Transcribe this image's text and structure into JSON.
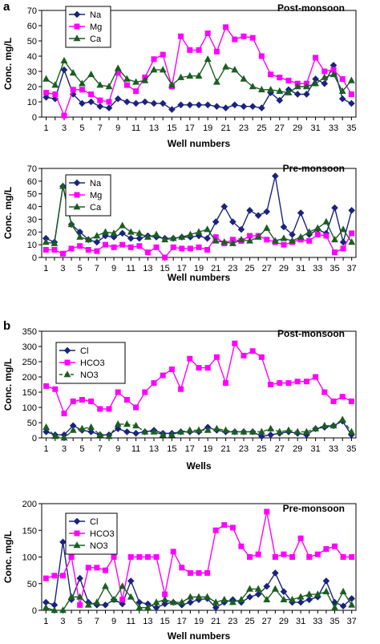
{
  "panel_labels": [
    "a",
    "b"
  ],
  "chart_data": [
    {
      "type": "line",
      "title": "Post-monsoon",
      "xlabel": "Well numbers",
      "ylabel": "Conc. mg/L",
      "ylim": [
        0,
        70
      ],
      "yticks": [
        0,
        10,
        20,
        30,
        40,
        50,
        60,
        70
      ],
      "x": [
        1,
        2,
        3,
        4,
        5,
        6,
        7,
        8,
        9,
        10,
        11,
        12,
        13,
        14,
        15,
        16,
        17,
        18,
        19,
        20,
        21,
        22,
        23,
        24,
        25,
        26,
        27,
        28,
        29,
        30,
        31,
        32,
        33,
        34,
        35
      ],
      "xtick_labels": [
        "1",
        "3",
        "5",
        "7",
        "9",
        "11",
        "13",
        "15",
        "17",
        "19",
        "21",
        "23",
        "25",
        "27",
        "29",
        "31",
        "33",
        "35"
      ],
      "xtick_values": [
        1,
        3,
        5,
        7,
        9,
        11,
        13,
        15,
        17,
        19,
        21,
        23,
        25,
        27,
        29,
        31,
        33,
        35
      ],
      "legend_position": "top-left",
      "series": [
        {
          "name": "Na",
          "color": "#1a237e",
          "marker": "diamond",
          "values": [
            13,
            12,
            31,
            15,
            9,
            10,
            7,
            6,
            12,
            10,
            9,
            10,
            9,
            9,
            5,
            8,
            8,
            8,
            8,
            7,
            6,
            8,
            7,
            7,
            6,
            16,
            11,
            18,
            15,
            15,
            25,
            22,
            34,
            12,
            9
          ]
        },
        {
          "name": "Mg",
          "color": "#ff00ff",
          "marker": "square",
          "values": [
            16,
            15,
            1,
            18,
            18,
            15,
            11,
            10,
            29,
            21,
            17,
            26,
            38,
            41,
            20,
            53,
            44,
            44,
            55,
            43,
            59,
            51,
            53,
            52,
            40,
            28,
            26,
            24,
            22,
            22,
            39,
            30,
            31,
            25,
            15
          ]
        },
        {
          "name": "Ca",
          "color": "#1b5e20",
          "marker": "triangle",
          "values": [
            25,
            21,
            37,
            29,
            22,
            28,
            21,
            20,
            32,
            25,
            23,
            24,
            31,
            31,
            21,
            26,
            27,
            27,
            38,
            23,
            33,
            31,
            25,
            20,
            18,
            18,
            17,
            16,
            20,
            20,
            22,
            26,
            28,
            17,
            24
          ]
        }
      ]
    },
    {
      "type": "line",
      "title": "Pre-monsoon",
      "xlabel": "Well numbers",
      "ylabel": "Conc. mg/L",
      "ylim": [
        0,
        70
      ],
      "yticks": [
        0,
        10,
        20,
        30,
        40,
        50,
        60,
        70
      ],
      "x": [
        1,
        2,
        3,
        4,
        5,
        6,
        7,
        8,
        9,
        10,
        11,
        12,
        13,
        14,
        15,
        16,
        17,
        18,
        19,
        20,
        21,
        22,
        23,
        24,
        25,
        26,
        27,
        28,
        29,
        30,
        31,
        32,
        33,
        34,
        35,
        36,
        37
      ],
      "xtick_labels": [
        "1",
        "3",
        "5",
        "7",
        "9",
        "11",
        "13",
        "15",
        "17",
        "19",
        "21",
        "23",
        "25",
        "27",
        "29",
        "31",
        "33",
        "35",
        "37"
      ],
      "xtick_values": [
        1,
        3,
        5,
        7,
        9,
        11,
        13,
        15,
        17,
        19,
        21,
        23,
        25,
        27,
        29,
        31,
        33,
        35,
        37
      ],
      "legend_position": "top-left",
      "series": [
        {
          "name": "Na",
          "color": "#1a237e",
          "marker": "diamond",
          "values": [
            15,
            12,
            56,
            26,
            20,
            14,
            12,
            17,
            16,
            19,
            15,
            15,
            17,
            16,
            15,
            15,
            16,
            16,
            17,
            15,
            28,
            40,
            28,
            22,
            37,
            33,
            36,
            64,
            24,
            18,
            35,
            18,
            22,
            19,
            39,
            12,
            37
          ]
        },
        {
          "name": "Mg",
          "color": "#ff00ff",
          "marker": "square",
          "values": [
            6,
            6,
            3,
            7,
            9,
            6,
            5,
            10,
            8,
            10,
            8,
            9,
            4,
            8,
            0,
            8,
            7,
            7,
            8,
            6,
            16,
            11,
            14,
            13,
            17,
            17,
            14,
            12,
            10,
            12,
            14,
            13,
            18,
            17,
            4,
            7,
            19
          ]
        },
        {
          "name": "Ca",
          "color": "#1b5e20",
          "marker": "triangle",
          "values": [
            12,
            11,
            56,
            26,
            16,
            14,
            17,
            20,
            19,
            25,
            20,
            19,
            16,
            18,
            14,
            15,
            16,
            18,
            20,
            22,
            13,
            12,
            11,
            14,
            13,
            16,
            23,
            13,
            15,
            13,
            16,
            20,
            23,
            28,
            14,
            22,
            12
          ]
        }
      ]
    },
    {
      "type": "line",
      "title": "Post-monsoon",
      "xlabel": "Wells",
      "ylabel": "Conc. mg/L",
      "ylim": [
        0,
        350
      ],
      "yticks": [
        0,
        50,
        100,
        150,
        200,
        250,
        300,
        350
      ],
      "x": [
        1,
        2,
        3,
        4,
        5,
        6,
        7,
        8,
        9,
        10,
        11,
        12,
        13,
        14,
        15,
        16,
        17,
        18,
        19,
        20,
        21,
        22,
        23,
        24,
        25,
        26,
        27,
        28,
        29,
        30,
        31,
        32,
        33,
        34,
        35
      ],
      "xtick_labels": [
        "1",
        "3",
        "5",
        "7",
        "9",
        "11",
        "13",
        "15",
        "17",
        "19",
        "21",
        "23",
        "25",
        "27",
        "29",
        "31",
        "33",
        "35"
      ],
      "xtick_values": [
        1,
        3,
        5,
        7,
        9,
        11,
        13,
        15,
        17,
        19,
        21,
        23,
        25,
        27,
        29,
        31,
        33,
        35
      ],
      "legend_position": "top-left",
      "series": [
        {
          "name": "Cl",
          "color": "#1a237e",
          "marker": "diamond",
          "values": [
            20,
            10,
            10,
            40,
            25,
            20,
            10,
            10,
            30,
            20,
            15,
            20,
            25,
            15,
            15,
            20,
            20,
            20,
            35,
            25,
            20,
            20,
            20,
            20,
            5,
            10,
            15,
            20,
            15,
            10,
            30,
            35,
            40,
            55,
            10
          ]
        },
        {
          "name": "HCO3",
          "color": "#ff00ff",
          "marker": "square",
          "values": [
            170,
            160,
            80,
            120,
            125,
            120,
            95,
            95,
            150,
            125,
            100,
            150,
            180,
            205,
            225,
            160,
            260,
            230,
            230,
            265,
            180,
            310,
            270,
            285,
            265,
            175,
            180,
            180,
            185,
            185,
            200,
            150,
            120,
            135,
            120
          ]
        },
        {
          "name": "NO3",
          "color": "#1b5e20",
          "marker": "triangle",
          "line_style": "dashed",
          "values": [
            35,
            5,
            0,
            25,
            30,
            35,
            10,
            5,
            45,
            45,
            40,
            20,
            20,
            10,
            10,
            20,
            25,
            25,
            25,
            30,
            25,
            20,
            20,
            20,
            20,
            30,
            20,
            25,
            20,
            20,
            30,
            40,
            40,
            60,
            20
          ]
        }
      ]
    },
    {
      "type": "line",
      "title": "Pre-monsoon",
      "xlabel": "Well numbers",
      "ylabel": "Conc. mg/L",
      "ylim": [
        0,
        200
      ],
      "yticks": [
        0,
        50,
        100,
        150,
        200
      ],
      "x": [
        1,
        2,
        3,
        4,
        5,
        6,
        7,
        8,
        9,
        10,
        11,
        12,
        13,
        14,
        15,
        16,
        17,
        18,
        19,
        20,
        21,
        22,
        23,
        24,
        25,
        26,
        27,
        28,
        29,
        30,
        31,
        32,
        33,
        34,
        35,
        36,
        37
      ],
      "xtick_labels": [
        "1",
        "3",
        "5",
        "7",
        "9",
        "11",
        "13",
        "15",
        "17",
        "19",
        "21",
        "23",
        "25",
        "27",
        "29",
        "31",
        "33",
        "35",
        "37"
      ],
      "xtick_values": [
        1,
        3,
        5,
        7,
        9,
        11,
        13,
        15,
        17,
        19,
        21,
        23,
        25,
        27,
        29,
        31,
        33,
        35,
        37
      ],
      "legend_position": "top-left",
      "series": [
        {
          "name": "Cl",
          "color": "#1a237e",
          "marker": "diamond",
          "values": [
            15,
            10,
            128,
            20,
            60,
            15,
            10,
            10,
            20,
            12,
            55,
            15,
            12,
            5,
            12,
            15,
            10,
            15,
            20,
            22,
            5,
            15,
            20,
            15,
            25,
            30,
            45,
            70,
            35,
            15,
            15,
            20,
            25,
            55,
            15,
            8,
            22
          ]
        },
        {
          "name": "HCO3",
          "color": "#ff00ff",
          "marker": "square",
          "values": [
            60,
            65,
            65,
            100,
            10,
            80,
            80,
            75,
            100,
            20,
            100,
            100,
            100,
            100,
            30,
            110,
            80,
            70,
            70,
            70,
            150,
            160,
            155,
            120,
            100,
            105,
            185,
            100,
            105,
            100,
            135,
            100,
            105,
            115,
            120,
            100,
            100
          ]
        },
        {
          "name": "NO3",
          "color": "#1b5e20",
          "marker": "triangle",
          "values": [
            5,
            0,
            0,
            25,
            25,
            10,
            15,
            45,
            20,
            45,
            25,
            5,
            5,
            15,
            20,
            15,
            15,
            25,
            25,
            25,
            15,
            20,
            15,
            20,
            40,
            40,
            20,
            40,
            20,
            20,
            25,
            30,
            30,
            35,
            5,
            35,
            10
          ]
        }
      ]
    }
  ]
}
